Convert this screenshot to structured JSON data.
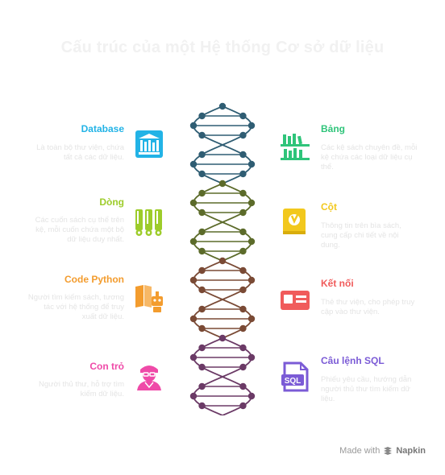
{
  "title": "Cấu trúc của một Hệ thống Cơ sở dữ liệu",
  "items": {
    "database": {
      "label": "Database",
      "desc": "Là toàn bộ thư viện, chứa tất cả các dữ liệu.",
      "color": "#22b3e6",
      "icon": "library-icon"
    },
    "table": {
      "label": "Bảng",
      "desc": "Các kệ sách chuyên đề, mỗi kệ chứa các loại dữ liệu cụ thể.",
      "color": "#2fc47a",
      "icon": "bookshelf-icon"
    },
    "row": {
      "label": "Dòng",
      "desc": "Các cuốn sách cụ thể trên kệ, mỗi cuốn chứa một bộ dữ liệu duy nhất.",
      "color": "#9dcc2a",
      "icon": "books-icon"
    },
    "column": {
      "label": "Cột",
      "desc": "Thông tin trên bìa sách, cung cấp chi tiết về nội dung.",
      "color": "#f2c81d",
      "icon": "book-cover-icon"
    },
    "code": {
      "label": "Code Python",
      "desc": "Người tìm kiếm sách, tương tác với hệ thống để truy xuất dữ liệu.",
      "color": "#f39c2e",
      "icon": "reader-robot-icon"
    },
    "connection": {
      "label": "Kết nối",
      "desc": "Thẻ thư viện, cho phép truy cập vào thư viện.",
      "color": "#f05b5b",
      "icon": "library-card-icon"
    },
    "cursor": {
      "label": "Con trỏ",
      "desc": "Người thủ thư, hỗ trợ tìm kiếm dữ liệu.",
      "color": "#ef4aa8",
      "icon": "librarian-icon"
    },
    "sql": {
      "label": "Câu lệnh SQL",
      "desc": "Phiếu yêu cầu, hướng dẫn người thủ thư tìm kiếm dữ liệu.",
      "color": "#7b5bd6",
      "icon": "sql-file-icon"
    }
  },
  "helix": {
    "segment_colors": [
      "#2f5d73",
      "#5c6b2a",
      "#7a4a35",
      "#6b3a66"
    ]
  },
  "footer": {
    "made_with": "Made with",
    "brand": "Napkin"
  }
}
